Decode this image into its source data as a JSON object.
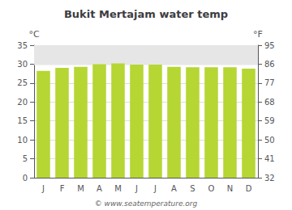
{
  "chart_data": {
    "type": "bar",
    "title": "Bukit Mertajam water temp",
    "categories": [
      "J",
      "F",
      "M",
      "A",
      "M",
      "J",
      "J",
      "A",
      "S",
      "O",
      "N",
      "D"
    ],
    "values": [
      28.2,
      29.0,
      29.3,
      30.0,
      30.2,
      29.9,
      29.9,
      29.3,
      29.2,
      29.2,
      29.2,
      28.8
    ],
    "y_label": "°C",
    "y2_label": "°F",
    "ylim": [
      0,
      35
    ],
    "yticks": [
      0,
      5,
      10,
      15,
      20,
      25,
      30,
      35
    ],
    "y2lim": [
      32,
      95
    ],
    "y2ticks": [
      32,
      41,
      50,
      59,
      68,
      77,
      86,
      95
    ],
    "shaded_band": [
      29.75,
      35
    ],
    "annotation": "© www.seatemperature.org",
    "grid": true
  }
}
